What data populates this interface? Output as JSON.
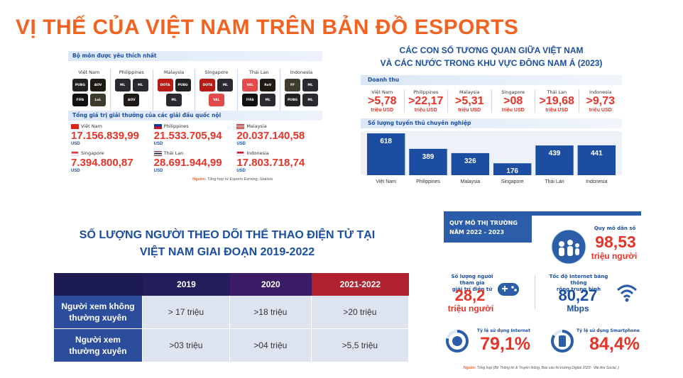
{
  "title": "VỊ THẾ CỦA VIỆT NAM TRÊN BẢN ĐỒ ESPORTS",
  "left_panel": {
    "games_header": "Bộ môn được yêu thích nhất",
    "game_countries": [
      "Việt Nam",
      "Philippines",
      "Malaysia",
      "Singapore",
      "Thái Lan",
      "Indonesia"
    ],
    "prize_header": "Tổng giá trị giải thưởng của các giải đấu quốc nội",
    "prizes": [
      {
        "country": "Việt Nam",
        "value": "17.156.839,99",
        "unit": "USD"
      },
      {
        "country": "Philippines",
        "value": "21.533.705,94",
        "unit": "USD"
      },
      {
        "country": "Malaysia",
        "value": "20.037.140,58",
        "unit": "USD"
      },
      {
        "country": "Singapore",
        "value": "7.394.800,87",
        "unit": "USD"
      },
      {
        "country": "Thái Lan",
        "value": "28.691.944,99",
        "unit": "USD"
      },
      {
        "country": "Indonesia",
        "value": "17.803.718,74",
        "unit": "USD"
      }
    ],
    "source_label": "Nguồn:",
    "source_text": "Tổng hợp từ Esports Earning, Statista"
  },
  "right_panel": {
    "title_line1": "CÁC CON SỐ TƯƠNG QUAN GIỮA VIỆT NAM",
    "title_line2": "VÀ CÁC NƯỚC TRONG KHU VỰC ĐÔNG NAM Á (2023)",
    "revenue_header": "Doanh thu",
    "revenue": [
      {
        "country": "Việt Nam",
        "value": ">5,78",
        "unit": "triệu USD"
      },
      {
        "country": "Philippines",
        "value": ">22,17",
        "unit": "triệu USD"
      },
      {
        "country": "Malaysia",
        "value": ">5,31",
        "unit": "triệu USD"
      },
      {
        "country": "Singapore",
        "value": ">08",
        "unit": "triệu USD"
      },
      {
        "country": "Thái Lan",
        "value": ">19,68",
        "unit": "triệu USD"
      },
      {
        "country": "Indonesia",
        "value": ">9,73",
        "unit": "triệu USD"
      }
    ],
    "players_header": "Số lượng tuyển thủ chuyên nghiệp"
  },
  "chart_data": {
    "type": "bar",
    "categories": [
      "Việt Nam",
      "Philippines",
      "Malaysia",
      "Singapore",
      "Thái Lan",
      "Indonesia"
    ],
    "values": [
      618,
      389,
      326,
      176,
      439,
      441
    ],
    "ylim": [
      0,
      650
    ],
    "bar_color": "#1b4ea3"
  },
  "table": {
    "title_line1": "SỐ LƯỢNG NGƯỜI THEO DÕI THỂ THAO ĐIỆN TỬ TẠI",
    "title_line2": "VIỆT NAM GIAI ĐOẠN 2019-2022",
    "headers": [
      "2019",
      "2020",
      "2021-2022"
    ],
    "rows": [
      {
        "label_line1": "Người xem không",
        "label_line2": "thường xuyên",
        "values": [
          "> 17 triệu",
          ">18 triệu",
          ">20 triệu"
        ]
      },
      {
        "label_line1": "Người xem",
        "label_line2": "thường xuyên",
        "values": [
          ">03 triệu",
          ">04 triệu",
          ">5,5 triệu"
        ]
      }
    ]
  },
  "market": {
    "head_line1": "QUY MÔ THỊ TRƯỜNG",
    "head_line2": "NĂM 2022 - 2023",
    "population_label": "Quy mô dân số",
    "population_value": "98,53",
    "population_unit": "triệu người",
    "players_label_line1": "Số lượng người tham gia",
    "players_label_line2": "giải trí điện tử",
    "players_value": "28,2",
    "players_unit": "triệu người",
    "speed_label_line1": "Tốc độ Internet băng thông",
    "speed_label_line2": "rộng trung bình",
    "speed_value": "80,27",
    "speed_unit": "Mbps",
    "internet_label": "Tỷ lệ sử dụng Internet",
    "internet_value": "79,1%",
    "smartphone_label": "Tỷ lệ sử dụng Smartphone",
    "smartphone_value": "84,4%",
    "source_label": "Nguồn:",
    "source_text": "Tổng hợp (Bộ Thông tin & Truyền thông, Báo cáo thị trường Digital 2023 - We Are Social..)"
  }
}
